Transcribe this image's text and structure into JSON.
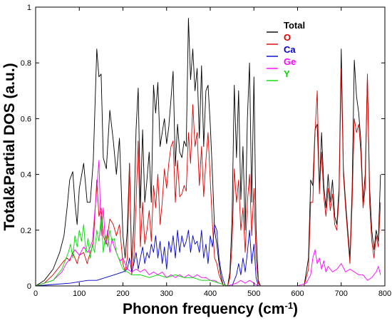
{
  "chart_data": {
    "type": "line",
    "xlabel_main": "Phonon frequency (cm",
    "xlabel_sup": "-1",
    "xlabel_close": ")",
    "ylabel": "Total&Partial DOS (a.u.)",
    "xlim": [
      0,
      800
    ],
    "ylim": [
      0,
      1
    ],
    "xticks": [
      0,
      100,
      200,
      300,
      400,
      500,
      600,
      700,
      800
    ],
    "yticks": [
      0,
      0.2,
      0.4,
      0.6,
      0.8,
      1
    ],
    "ytick_labels": [
      "0",
      "0.2",
      "0.4",
      "0.6",
      "0.8",
      "1"
    ],
    "grid": false,
    "legend_position": "top-right",
    "series": [
      {
        "name": "Total",
        "color": "#000000",
        "x": [
          0,
          20,
          40,
          55,
          65,
          72,
          78,
          85,
          90,
          95,
          100,
          110,
          118,
          125,
          132,
          140,
          145,
          150,
          155,
          162,
          170,
          178,
          185,
          192,
          200,
          205,
          210,
          215,
          220,
          225,
          230,
          235,
          240,
          245,
          250,
          255,
          260,
          265,
          270,
          275,
          280,
          285,
          290,
          295,
          300,
          305,
          310,
          315,
          320,
          325,
          330,
          335,
          340,
          345,
          350,
          355,
          360,
          365,
          370,
          375,
          380,
          385,
          390,
          395,
          400,
          405,
          410,
          415,
          420,
          425,
          430,
          435,
          440,
          445,
          450,
          455,
          460,
          465,
          470,
          475,
          480,
          485,
          490,
          495,
          500,
          505,
          510,
          515,
          520,
          540,
          560,
          580,
          600,
          615,
          625,
          630,
          635,
          640,
          645,
          650,
          655,
          660,
          665,
          670,
          675,
          680,
          685,
          690,
          695,
          700,
          705,
          710,
          715,
          720,
          725,
          730,
          735,
          740,
          745,
          750,
          755,
          760,
          765,
          770,
          775,
          780,
          785,
          790
        ],
        "y": [
          0,
          0.02,
          0.06,
          0.12,
          0.18,
          0.28,
          0.38,
          0.41,
          0.3,
          0.22,
          0.35,
          0.44,
          0.3,
          0.3,
          0.45,
          0.85,
          0.75,
          0.76,
          0.46,
          0.42,
          0.63,
          0.52,
          0.4,
          0.53,
          0.18,
          0.1,
          0.2,
          0.44,
          0.08,
          0.22,
          0.56,
          0.71,
          0.28,
          0.56,
          0.3,
          0.38,
          0.48,
          0.3,
          0.72,
          0.62,
          0.73,
          0.5,
          0.55,
          0.6,
          0.51,
          0.57,
          0.67,
          0.77,
          0.43,
          0.58,
          0.48,
          0.46,
          0.52,
          0.5,
          0.96,
          0.74,
          0.85,
          0.7,
          0.78,
          0.53,
          0.79,
          0.5,
          0.7,
          0.72,
          0.58,
          0.4,
          0.2,
          0.15,
          0.08,
          0.03,
          0.0,
          0.0,
          0.0,
          0.05,
          0.24,
          0.72,
          0.46,
          0.7,
          0.31,
          0.5,
          0.2,
          0.6,
          0.8,
          0.3,
          0.75,
          0.2,
          0.02,
          0.0,
          0.0,
          0.0,
          0.0,
          0.0,
          0.0,
          0.0,
          0.1,
          0.38,
          0.36,
          0.56,
          0.58,
          0.35,
          0.55,
          0.36,
          0.28,
          0.4,
          0.3,
          0.38,
          0.25,
          0.22,
          0.35,
          0.85,
          0.42,
          0.3,
          0.2,
          0.1,
          0.35,
          0.81,
          0.68,
          0.62,
          0.52,
          0.3,
          0.4,
          0.75,
          0.35,
          0.2,
          0.13,
          0.2,
          0.16,
          0.4
        ]
      },
      {
        "name": "O",
        "color": "#dd0000",
        "x": [
          0,
          20,
          40,
          55,
          65,
          72,
          78,
          85,
          90,
          95,
          100,
          110,
          118,
          125,
          132,
          140,
          145,
          150,
          155,
          162,
          170,
          178,
          185,
          192,
          200,
          205,
          210,
          215,
          220,
          225,
          230,
          235,
          240,
          245,
          250,
          255,
          260,
          265,
          270,
          275,
          280,
          285,
          290,
          295,
          300,
          305,
          310,
          315,
          320,
          325,
          330,
          335,
          340,
          345,
          350,
          355,
          360,
          365,
          370,
          375,
          380,
          385,
          390,
          395,
          400,
          405,
          410,
          415,
          420,
          425,
          430,
          435,
          440,
          445,
          450,
          455,
          460,
          465,
          470,
          475,
          480,
          485,
          490,
          495,
          500,
          505,
          510,
          515,
          520,
          540,
          560,
          580,
          600,
          615,
          625,
          630,
          635,
          640,
          645,
          650,
          655,
          660,
          665,
          670,
          675,
          680,
          685,
          690,
          695,
          700,
          705,
          710,
          715,
          720,
          725,
          730,
          735,
          740,
          745,
          750,
          755,
          760,
          765,
          770,
          775,
          780,
          785,
          790
        ],
        "y": [
          0,
          0.01,
          0.04,
          0.07,
          0.09,
          0.1,
          0.09,
          0.12,
          0.1,
          0.08,
          0.11,
          0.12,
          0.08,
          0.12,
          0.15,
          0.38,
          0.25,
          0.28,
          0.18,
          0.15,
          0.24,
          0.22,
          0.18,
          0.22,
          0.08,
          0.05,
          0.1,
          0.44,
          0.04,
          0.1,
          0.3,
          0.52,
          0.14,
          0.3,
          0.15,
          0.2,
          0.27,
          0.16,
          0.36,
          0.28,
          0.4,
          0.22,
          0.3,
          0.42,
          0.35,
          0.44,
          0.5,
          0.52,
          0.3,
          0.45,
          0.32,
          0.33,
          0.36,
          0.34,
          0.55,
          0.44,
          0.65,
          0.5,
          0.55,
          0.36,
          0.5,
          0.32,
          0.45,
          0.55,
          0.38,
          0.22,
          0.1,
          0.08,
          0.04,
          0.02,
          0.0,
          0.0,
          0.0,
          0.03,
          0.15,
          0.42,
          0.3,
          0.38,
          0.2,
          0.28,
          0.12,
          0.3,
          0.4,
          0.18,
          0.35,
          0.1,
          0.01,
          0.0,
          0.0,
          0.0,
          0.0,
          0.0,
          0.0,
          0.0,
          0.06,
          0.3,
          0.3,
          0.55,
          0.7,
          0.33,
          0.48,
          0.32,
          0.25,
          0.35,
          0.27,
          0.33,
          0.22,
          0.2,
          0.32,
          0.78,
          0.4,
          0.28,
          0.18,
          0.08,
          0.3,
          0.6,
          0.55,
          0.58,
          0.48,
          0.28,
          0.35,
          0.76,
          0.3,
          0.16,
          0.1,
          0.18,
          0.14,
          0.3
        ]
      },
      {
        "name": "Ca",
        "color": "#0000cc",
        "x": [
          0,
          40,
          80,
          100,
          120,
          140,
          160,
          180,
          200,
          210,
          215,
          220,
          225,
          230,
          235,
          240,
          245,
          250,
          255,
          260,
          265,
          270,
          275,
          280,
          285,
          290,
          295,
          300,
          305,
          310,
          315,
          320,
          325,
          330,
          335,
          340,
          345,
          350,
          355,
          360,
          365,
          370,
          375,
          380,
          385,
          390,
          395,
          400,
          405,
          410,
          415,
          420,
          425,
          430,
          435,
          440,
          450,
          460,
          465,
          470,
          475,
          480,
          485,
          490,
          495,
          500,
          505,
          510,
          520,
          600,
          620,
          650,
          700,
          750,
          790
        ],
        "y": [
          0,
          0.005,
          0.01,
          0.015,
          0.02,
          0.02,
          0.03,
          0.04,
          0.05,
          0.06,
          0.1,
          0.05,
          0.08,
          0.12,
          0.06,
          0.1,
          0.14,
          0.08,
          0.12,
          0.1,
          0.15,
          0.12,
          0.18,
          0.1,
          0.16,
          0.08,
          0.14,
          0.06,
          0.16,
          0.12,
          0.18,
          0.1,
          0.2,
          0.12,
          0.18,
          0.14,
          0.16,
          0.2,
          0.12,
          0.18,
          0.15,
          0.16,
          0.12,
          0.2,
          0.1,
          0.15,
          0.08,
          0.18,
          0.14,
          0.22,
          0.2,
          0.1,
          0.05,
          0.02,
          0.0,
          0.0,
          0.0,
          0.04,
          0.08,
          0.04,
          0.1,
          0.05,
          0.12,
          0.2,
          0.08,
          0.15,
          0.03,
          0.0,
          0.0,
          0.0,
          0.0,
          0.0,
          0.0,
          0.0,
          0.0
        ]
      },
      {
        "name": "Ge",
        "color": "#ff00ff",
        "x": [
          0,
          40,
          60,
          70,
          80,
          90,
          100,
          110,
          120,
          130,
          140,
          145,
          150,
          155,
          160,
          165,
          170,
          175,
          180,
          185,
          190,
          195,
          200,
          210,
          220,
          230,
          240,
          250,
          260,
          270,
          280,
          290,
          300,
          310,
          320,
          330,
          340,
          350,
          360,
          370,
          380,
          390,
          400,
          410,
          420,
          430,
          440,
          460,
          470,
          480,
          490,
          500,
          510,
          600,
          620,
          630,
          635,
          640,
          645,
          650,
          655,
          660,
          665,
          670,
          680,
          690,
          700,
          710,
          720,
          730,
          740,
          750,
          760,
          770,
          780,
          785,
          790
        ],
        "y": [
          0,
          0.02,
          0.05,
          0.08,
          0.1,
          0.13,
          0.11,
          0.14,
          0.12,
          0.16,
          0.35,
          0.45,
          0.18,
          0.28,
          0.15,
          0.2,
          0.12,
          0.17,
          0.14,
          0.12,
          0.1,
          0.09,
          0.1,
          0.06,
          0.05,
          0.06,
          0.05,
          0.06,
          0.04,
          0.05,
          0.04,
          0.05,
          0.03,
          0.04,
          0.03,
          0.04,
          0.03,
          0.04,
          0.03,
          0.04,
          0.03,
          0.03,
          0.02,
          0.02,
          0.01,
          0.005,
          0.0,
          0.01,
          0.02,
          0.01,
          0.02,
          0.01,
          0.0,
          0.0,
          0.01,
          0.04,
          0.1,
          0.13,
          0.08,
          0.1,
          0.06,
          0.09,
          0.05,
          0.07,
          0.05,
          0.06,
          0.08,
          0.05,
          0.06,
          0.05,
          0.04,
          0.04,
          0.02,
          0.03,
          0.05,
          0.07,
          0.04
        ]
      },
      {
        "name": "Y",
        "color": "#00dd00",
        "x": [
          0,
          40,
          60,
          70,
          75,
          80,
          85,
          90,
          95,
          100,
          105,
          110,
          115,
          120,
          125,
          130,
          135,
          140,
          145,
          150,
          155,
          160,
          165,
          170,
          175,
          180,
          185,
          190,
          195,
          200,
          210,
          220,
          240,
          260,
          280,
          300,
          320,
          340,
          360,
          380,
          400,
          420,
          440,
          460,
          480,
          500,
          520,
          600,
          650,
          700,
          750,
          790
        ],
        "y": [
          0,
          0.02,
          0.06,
          0.1,
          0.12,
          0.15,
          0.1,
          0.18,
          0.14,
          0.2,
          0.16,
          0.22,
          0.12,
          0.17,
          0.1,
          0.15,
          0.12,
          0.2,
          0.16,
          0.25,
          0.12,
          0.18,
          0.14,
          0.2,
          0.16,
          0.17,
          0.12,
          0.1,
          0.08,
          0.06,
          0.05,
          0.04,
          0.04,
          0.03,
          0.04,
          0.03,
          0.04,
          0.03,
          0.03,
          0.02,
          0.02,
          0.01,
          0.0,
          0.0,
          0.0,
          0.0,
          0.0,
          0.0,
          0.0,
          0.0,
          0.0,
          0.0
        ]
      }
    ]
  }
}
